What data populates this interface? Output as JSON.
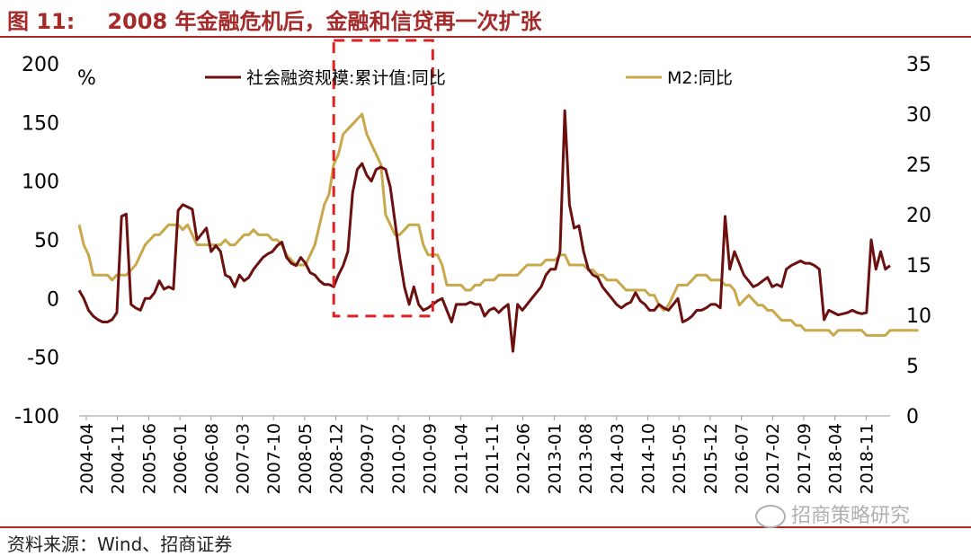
{
  "figure": {
    "number": "图 11:",
    "title": "2008 年金融危机后，金融和信贷再一次扩张",
    "source": "资料来源：Wind、招商证券",
    "watermark": "招商策略研究"
  },
  "colors": {
    "accent": "#a52a2a",
    "series1": "#6b0f0f",
    "series2": "#c8a84a",
    "box": "#e02020"
  },
  "chart_data": {
    "type": "line",
    "unit_label": "%",
    "left_axis": {
      "min": -100,
      "max": 200,
      "ticks": [
        200,
        150,
        100,
        50,
        0,
        -50,
        -100
      ]
    },
    "right_axis": {
      "min": 0,
      "max": 35,
      "ticks": [
        35,
        30,
        25,
        20,
        15,
        10,
        5,
        0
      ]
    },
    "x_tick_labels": [
      "2004-04",
      "2004-11",
      "2005-06",
      "2006-01",
      "2006-08",
      "2007-03",
      "2007-10",
      "2008-05",
      "2008-12",
      "2009-07",
      "2010-02",
      "2010-09",
      "2011-04",
      "2011-11",
      "2012-06",
      "2013-01",
      "2013-08",
      "2014-03",
      "2014-10",
      "2015-05",
      "2015-12",
      "2016-07",
      "2017-02",
      "2017-09",
      "2018-04",
      "2018-11"
    ],
    "highlight": {
      "start": "2008-10",
      "end": "2010-07",
      "style": "dashed-box"
    },
    "series": [
      {
        "name": "社会融资规模:累计值:同比",
        "axis": "left",
        "values": [
          7,
          0,
          -10,
          -15,
          -18,
          -20,
          -20,
          -18,
          -12,
          70,
          72,
          -5,
          -8,
          -10,
          0,
          0,
          5,
          15,
          8,
          10,
          8,
          75,
          80,
          78,
          76,
          50,
          55,
          60,
          40,
          45,
          40,
          20,
          18,
          10,
          20,
          15,
          18,
          25,
          30,
          35,
          38,
          40,
          45,
          48,
          35,
          30,
          28,
          35,
          30,
          22,
          20,
          15,
          12,
          12,
          10,
          20,
          28,
          40,
          90,
          110,
          115,
          105,
          100,
          110,
          112,
          110,
          95,
          65,
          35,
          10,
          -5,
          10,
          -5,
          -10,
          -8,
          -5,
          -2,
          0,
          -10,
          -20,
          -5,
          -5,
          -5,
          -3,
          -5,
          -5,
          -15,
          -10,
          -8,
          -12,
          -8,
          -5,
          -45,
          -5,
          -10,
          -5,
          0,
          5,
          10,
          20,
          25,
          25,
          40,
          160,
          80,
          60,
          62,
          40,
          25,
          20,
          18,
          10,
          5,
          0,
          -5,
          -8,
          -5,
          -3,
          5,
          -2,
          -5,
          -10,
          -10,
          -5,
          -8,
          -10,
          -5,
          0,
          -20,
          -18,
          -15,
          -10,
          -10,
          -8,
          -5,
          -5,
          -8,
          70,
          25,
          40,
          30,
          20,
          15,
          10,
          12,
          15,
          18,
          10,
          12,
          10,
          25,
          28,
          30,
          32,
          30,
          30,
          28,
          25,
          -18,
          -10,
          -12,
          -14,
          -13,
          -12,
          -10,
          -12,
          -13,
          -12,
          50,
          25,
          40,
          25,
          28
        ]
      },
      {
        "name": "M2:同比",
        "axis": "right",
        "values": [
          19,
          17,
          16,
          14,
          14,
          14,
          14,
          13.5,
          14,
          14,
          14,
          14.5,
          15,
          16,
          17,
          17.5,
          18,
          18,
          18.5,
          19,
          19,
          19,
          18.5,
          19,
          18,
          17,
          17,
          17,
          17,
          17,
          17,
          17.5,
          17,
          17,
          17.5,
          18,
          18,
          18.5,
          18,
          18,
          18,
          17.5,
          17.5,
          17,
          16,
          15.5,
          15,
          15,
          15,
          16,
          17,
          19,
          21,
          22,
          25,
          26,
          28,
          28.5,
          29,
          29.5,
          30,
          28,
          27,
          26,
          25,
          20,
          19,
          18,
          18,
          18.5,
          19,
          19,
          19,
          17,
          16,
          16,
          16,
          15,
          13,
          13,
          13,
          13,
          12.5,
          12.5,
          13,
          13,
          13.5,
          13.5,
          13.5,
          14,
          14,
          14,
          14,
          14,
          14.5,
          15,
          15,
          15,
          15,
          15.5,
          15.5,
          15.5,
          16,
          16,
          15,
          15,
          15,
          15,
          14.5,
          14.5,
          14,
          14,
          13.5,
          13.5,
          13.5,
          13,
          12.5,
          12.5,
          12.5,
          12.5,
          12.5,
          12,
          12,
          11,
          10.5,
          11,
          12,
          13,
          13,
          13,
          13.5,
          14,
          14,
          14,
          13.5,
          13.5,
          13.5,
          13,
          13,
          12.5,
          11,
          11.5,
          12,
          11.5,
          11,
          11,
          10.5,
          10.5,
          10,
          9.5,
          9.5,
          9.5,
          9,
          9,
          8.5,
          8.5,
          8.5,
          8.5,
          8.5,
          8.5,
          8,
          8.5,
          8.5,
          8.5,
          8.5,
          8.5,
          8.5,
          8,
          8,
          8,
          8,
          8,
          8.5,
          8.5,
          8.5,
          8.5,
          8.5,
          8.5,
          8.5
        ]
      }
    ]
  }
}
